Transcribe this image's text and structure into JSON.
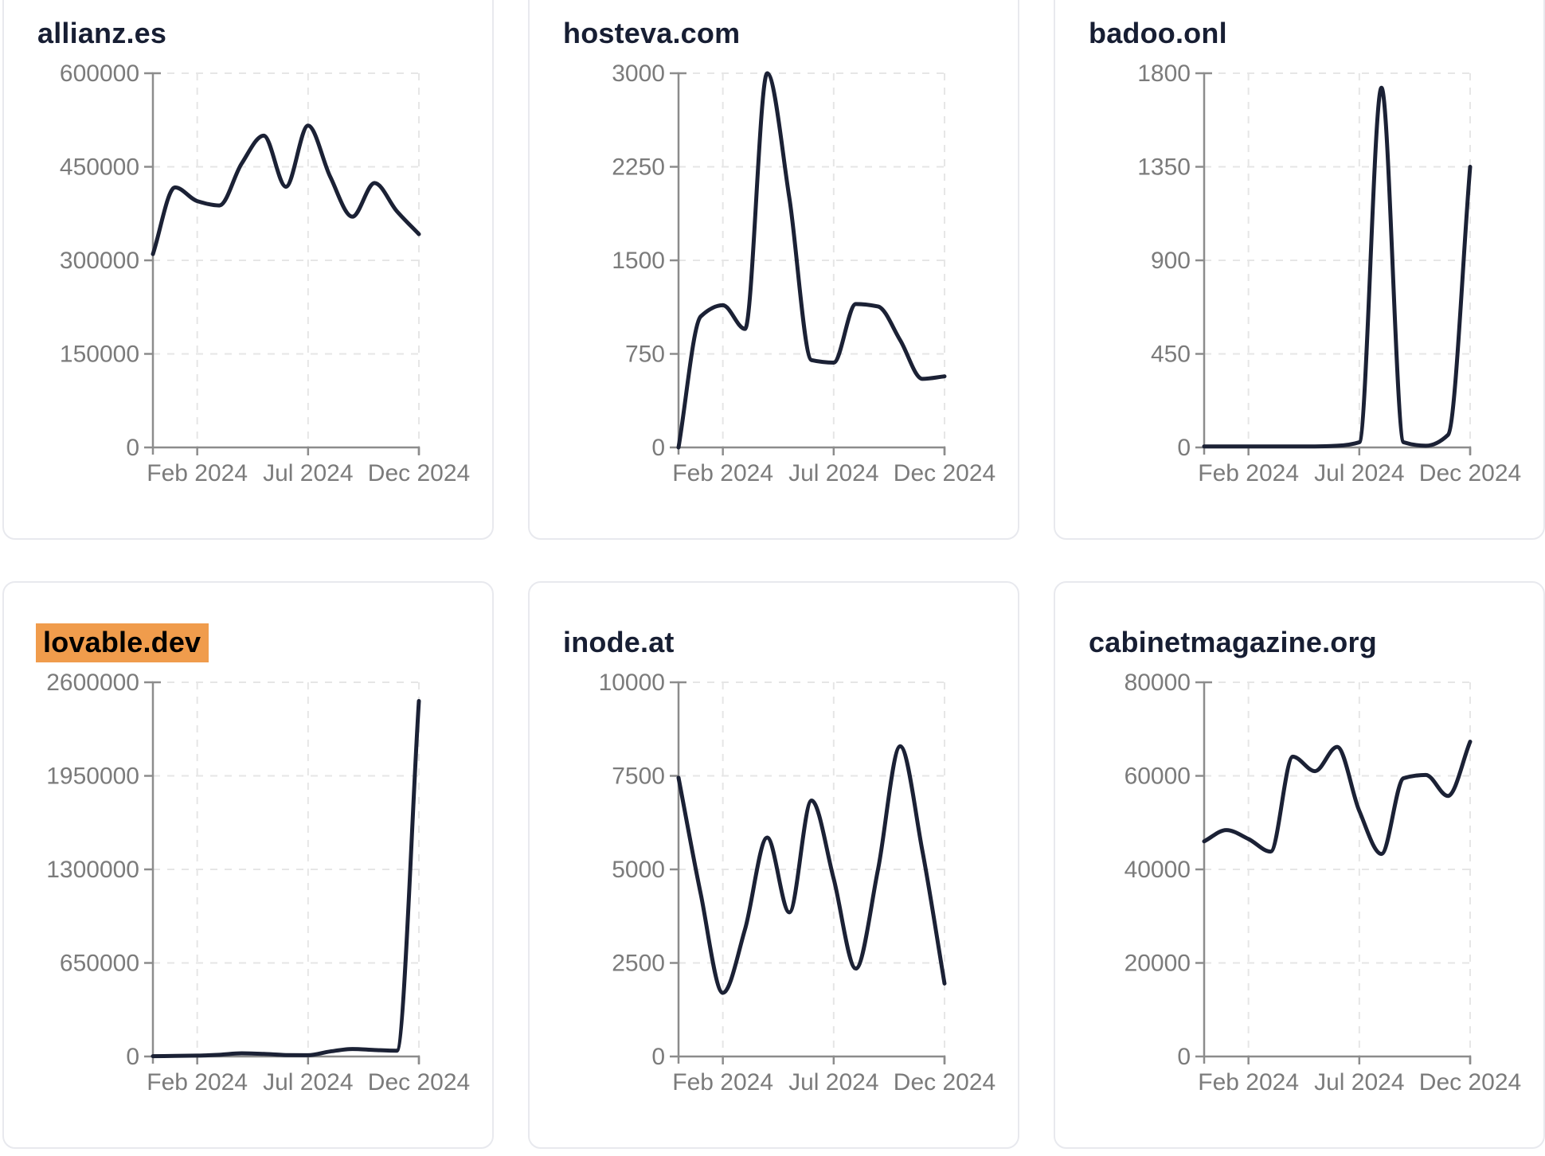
{
  "page": {
    "description": "Dashboard grid of six website-traffic sparkline cards, one per domain, each a smooth dark line chart of monthly traffic for 2024",
    "x_tick_labels_shared": [
      "Feb 2024",
      "Jul 2024",
      "Dec 2024"
    ]
  },
  "colors": {
    "line": "#1b2135",
    "axis": "#8c8c8c",
    "tick_label": "#7b7b7b",
    "title": "#171e33",
    "card_border": "#e8e9ee",
    "highlight": "#f09c4c",
    "card_bg": "#ffffff",
    "page_bg": "#ffffff"
  },
  "chart_data": [
    {
      "type": "line",
      "title": "allianz.es",
      "highlighted": false,
      "x_ticks": [
        "Feb 2024",
        "Jul 2024",
        "Dec 2024"
      ],
      "y_ticks": [
        0,
        150000,
        300000,
        450000,
        600000
      ],
      "ylim": [
        0,
        600000
      ],
      "grid": true,
      "values": [
        310000,
        417000,
        395000,
        388000,
        455000,
        500000,
        418000,
        516000,
        434000,
        370000,
        424000,
        379000,
        342000
      ]
    },
    {
      "type": "line",
      "title": "hosteva.com",
      "highlighted": false,
      "x_ticks": [
        "Feb 2024",
        "Jul 2024",
        "Dec 2024"
      ],
      "y_ticks": [
        0,
        750,
        1500,
        2250,
        3000
      ],
      "ylim": [
        0,
        3000
      ],
      "grid": true,
      "values": [
        0,
        1050,
        1140,
        950,
        3000,
        2000,
        700,
        680,
        1150,
        1130,
        860,
        550,
        570
      ]
    },
    {
      "type": "line",
      "title": "badoo.onl",
      "highlighted": false,
      "x_ticks": [
        "Feb 2024",
        "Jul 2024",
        "Dec 2024"
      ],
      "y_ticks": [
        0,
        450,
        900,
        1350,
        1800
      ],
      "ylim": [
        0,
        1800
      ],
      "grid": true,
      "values": [
        5,
        5,
        5,
        5,
        5,
        5,
        8,
        25,
        1730,
        25,
        8,
        60,
        1350
      ]
    },
    {
      "type": "line",
      "title": "lovable.dev",
      "highlighted": true,
      "x_ticks": [
        "Feb 2024",
        "Jul 2024",
        "Dec 2024"
      ],
      "y_ticks": [
        0,
        650000,
        1300000,
        1950000,
        2600000
      ],
      "ylim": [
        0,
        2600000
      ],
      "grid": true,
      "values": [
        2000,
        4000,
        6000,
        12000,
        22000,
        18000,
        10000,
        9000,
        35000,
        52000,
        45000,
        40000,
        2470000
      ]
    },
    {
      "type": "line",
      "title": "inode.at",
      "highlighted": false,
      "x_ticks": [
        "Feb 2024",
        "Jul 2024",
        "Dec 2024"
      ],
      "y_ticks": [
        0,
        2500,
        5000,
        7500,
        10000
      ],
      "ylim": [
        0,
        10000
      ],
      "grid": true,
      "values": [
        7450,
        4350,
        1700,
        3400,
        5850,
        3850,
        6840,
        4750,
        2350,
        5000,
        8290,
        5500,
        1950
      ]
    },
    {
      "type": "line",
      "title": "cabinetmagazine.org",
      "highlighted": false,
      "x_ticks": [
        "Feb 2024",
        "Jul 2024",
        "Dec 2024"
      ],
      "y_ticks": [
        0,
        20000,
        40000,
        60000,
        80000
      ],
      "ylim": [
        0,
        80000
      ],
      "grid": true,
      "values": [
        46000,
        48400,
        46500,
        43800,
        64100,
        61000,
        66200,
        52500,
        43300,
        59500,
        60200,
        55700,
        67300
      ]
    }
  ]
}
